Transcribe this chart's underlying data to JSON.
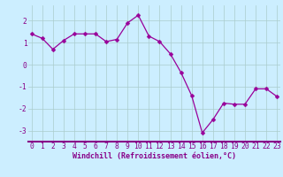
{
  "x": [
    0,
    1,
    2,
    3,
    4,
    5,
    6,
    7,
    8,
    9,
    10,
    11,
    12,
    13,
    14,
    15,
    16,
    17,
    18,
    19,
    20,
    21,
    22,
    23
  ],
  "y": [
    1.4,
    1.2,
    0.7,
    1.1,
    1.4,
    1.4,
    1.4,
    1.05,
    1.15,
    1.9,
    2.25,
    1.3,
    1.05,
    0.5,
    -0.35,
    -1.4,
    -3.1,
    -2.5,
    -1.75,
    -1.8,
    -1.8,
    -1.1,
    -1.1,
    -1.45
  ],
  "line_color": "#990099",
  "marker_color": "#990099",
  "bg_color": "#cceeff",
  "grid_color": "#aacccc",
  "xlabel": "Windchill (Refroidissement éolien,°C)",
  "xlabel_color": "#880088",
  "ylim": [
    -3.5,
    2.7
  ],
  "yticks": [
    -3,
    -2,
    -1,
    0,
    1,
    2
  ],
  "xlim": [
    -0.3,
    23.3
  ],
  "xticks": [
    0,
    1,
    2,
    3,
    4,
    5,
    6,
    7,
    8,
    9,
    10,
    11,
    12,
    13,
    14,
    15,
    16,
    17,
    18,
    19,
    20,
    21,
    22,
    23
  ],
  "tick_color": "#880088",
  "border_color": "#880088",
  "label_fontsize": 6.0,
  "tick_fontsize": 5.8,
  "marker_size": 2.5,
  "line_width": 0.9,
  "bottom_line_color": "#880088"
}
